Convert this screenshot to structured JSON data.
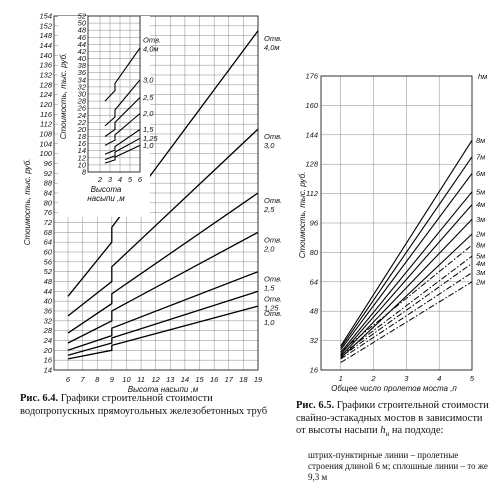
{
  "chart_data": [
    {
      "type": "line",
      "x_start_value": 6,
      "xlabel": "Высота насыпи ,м",
      "ylabel": "Стоимость, тыс. руб.",
      "x_ticks": [
        "6",
        "7",
        "8",
        "9",
        "10",
        "11",
        "12",
        "13",
        "14",
        "15",
        "16",
        "17",
        "18",
        "19"
      ],
      "y_ticks": [
        "14",
        "16",
        "20",
        "24",
        "28",
        "32",
        "36",
        "40",
        "44",
        "48",
        "52",
        "56",
        "60",
        "64",
        "68",
        "72",
        "76",
        "80",
        "84",
        "88",
        "92",
        "96",
        "100",
        "104",
        "108",
        "112",
        "116",
        "120",
        "124",
        "128",
        "132",
        "136",
        "140",
        "144",
        "148",
        "152",
        "154"
      ],
      "xlim": [
        6,
        19
      ],
      "ylim": [
        14,
        154
      ],
      "grid": true,
      "series": [
        {
          "name": "Отв. 4,0м",
          "x": [
            6,
            9,
            9,
            19
          ],
          "y": [
            42,
            64,
            70,
            150
          ]
        },
        {
          "name": "Отв. 3,0",
          "x": [
            6,
            9,
            9,
            19
          ],
          "y": [
            34,
            48,
            54,
            110
          ]
        },
        {
          "name": "Отв. 2,5",
          "x": [
            6,
            9,
            9,
            19
          ],
          "y": [
            27,
            39,
            43,
            84
          ]
        },
        {
          "name": "Отв. 2,0",
          "x": [
            6,
            9,
            9,
            19
          ],
          "y": [
            23,
            32,
            36,
            68
          ]
        },
        {
          "name": "Отв. 1,5",
          "x": [
            6,
            9,
            9,
            19
          ],
          "y": [
            20,
            26,
            29,
            52
          ]
        },
        {
          "name": "Отв. 1,25",
          "x": [
            6,
            9,
            9,
            19
          ],
          "y": [
            18,
            23,
            25,
            44
          ]
        },
        {
          "name": "Отв. 1,0",
          "x": [
            6,
            9,
            9,
            19
          ],
          "y": [
            16.5,
            20,
            22,
            38
          ]
        }
      ],
      "inset": {
        "type": "line",
        "xlabel": "Высота насыпи ,м",
        "ylabel": "Стоимость, тыс. руб.",
        "x_ticks": [
          "2",
          "3",
          "4",
          "5",
          "6"
        ],
        "y_ticks": [
          "8",
          "10",
          "12",
          "14",
          "16",
          "18",
          "20",
          "22",
          "24",
          "26",
          "28",
          "30",
          "32",
          "34",
          "36",
          "38",
          "40",
          "42",
          "44",
          "46",
          "48",
          "50",
          "52"
        ],
        "xlim": [
          2,
          6
        ],
        "ylim": [
          8,
          52
        ],
        "series": [
          {
            "name": "Отв. 4,0м",
            "x": [
              2.5,
              3.5,
              3.5,
              6
            ],
            "y": [
              28,
              31,
              33,
              43
            ]
          },
          {
            "name": "3,0",
            "x": [
              2.5,
              3.5,
              3.5,
              6
            ],
            "y": [
              21,
              23.5,
              25.5,
              34
            ]
          },
          {
            "name": "2,5",
            "x": [
              2.5,
              3.5,
              3.5,
              6
            ],
            "y": [
              18,
              20,
              22,
              29
            ]
          },
          {
            "name": "2,0",
            "x": [
              2.5,
              3.5,
              3.5,
              6
            ],
            "y": [
              15.5,
              17,
              18.5,
              24.5
            ]
          },
          {
            "name": "1,5",
            "x": [
              2.5,
              3.5,
              3.5,
              6
            ],
            "y": [
              13,
              14.2,
              15.2,
              20
            ]
          },
          {
            "name": "1,25",
            "x": [
              2.5,
              3.5,
              3.5,
              6
            ],
            "y": [
              11.5,
              12.6,
              13.6,
              17.5
            ]
          },
          {
            "name": "1,0",
            "x": [
              2.5,
              3.5,
              3.5,
              6
            ],
            "y": [
              10.5,
              11.4,
              12.2,
              15.5
            ]
          }
        ]
      }
    },
    {
      "type": "line",
      "xlabel": "Общее число пролетов моста ,п",
      "ylabel": "Стоимость, тыс. руб.",
      "x_ticks": [
        "1",
        "2",
        "3",
        "4",
        "5"
      ],
      "y_ticks": [
        "16",
        "32",
        "48",
        "64",
        "80",
        "96",
        "112",
        "128",
        "144",
        "160",
        "176"
      ],
      "xlim": [
        0.4,
        5
      ],
      "ylim": [
        16,
        176
      ],
      "grid": true,
      "legend_unit": "hм",
      "solid_series": [
        {
          "name": "8м",
          "x": [
            1,
            5
          ],
          "y": [
            29,
            141
          ]
        },
        {
          "name": "7м",
          "x": [
            1,
            5
          ],
          "y": [
            28,
            132
          ]
        },
        {
          "name": "6м",
          "x": [
            1,
            5
          ],
          "y": [
            27,
            123
          ]
        },
        {
          "name": "5м",
          "x": [
            1,
            5
          ],
          "y": [
            25.5,
            113
          ]
        },
        {
          "name": "4м",
          "x": [
            1,
            5
          ],
          "y": [
            24.5,
            106
          ]
        },
        {
          "name": "3м",
          "x": [
            1,
            5
          ],
          "y": [
            23.5,
            98
          ]
        },
        {
          "name": "2м",
          "x": [
            1,
            5
          ],
          "y": [
            22.5,
            90
          ]
        }
      ],
      "dashed_series": [
        {
          "name": "8м",
          "x": [
            1,
            5
          ],
          "y": [
            26,
            84
          ]
        },
        {
          "name": "5м",
          "x": [
            1,
            5
          ],
          "y": [
            24,
            78
          ]
        },
        {
          "name": "4м",
          "x": [
            1,
            5
          ],
          "y": [
            23,
            74
          ]
        },
        {
          "name": "3м",
          "x": [
            1,
            5
          ],
          "y": [
            22,
            69
          ]
        },
        {
          "name": "2м",
          "x": [
            1,
            5
          ],
          "y": [
            20,
            64
          ]
        }
      ]
    }
  ],
  "captions": {
    "fig64_label": "Рис. 6.4.",
    "fig64_text": "Графики строительной стоимости водопропускных прямоугольных железобетонных труб",
    "fig65_label": "Рис. 6.5.",
    "fig65_text_a": "Графики строительной стоимости свайно-эстакадных мостов в зависимости от высоты насыпи",
    "fig65_h": "h",
    "fig65_hsub": "н",
    "fig65_text_b": "на подходе:",
    "fig65_note": "штрих-пунктирные линии – пролетные строения длиной 6 м; сплошные линии – то же 9,3 м"
  }
}
